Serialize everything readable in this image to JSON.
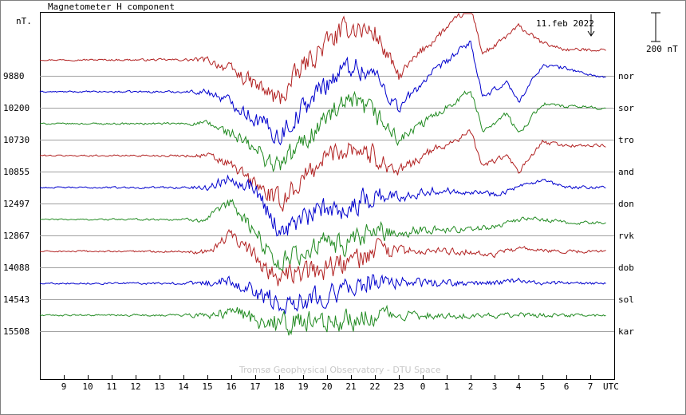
{
  "title": "Magnetometer H component",
  "unit_label": "nT.",
  "date_label": "11.feb 2022",
  "scale_label": "200 nT",
  "credit": "Tromsø Geophysical Observatory - DTU Space",
  "x_axis_unit": "UTC",
  "colors": {
    "red": "#b22222",
    "blue": "#0000cd",
    "green": "#228b22",
    "grid": "#a0a0a0",
    "frame": "#000000"
  },
  "chart_data": {
    "type": "line",
    "title": "Magnetometer H component",
    "xlabel": "UTC",
    "x_ticks": [
      "9",
      "10",
      "11",
      "12",
      "13",
      "14",
      "15",
      "16",
      "17",
      "18",
      "19",
      "20",
      "21",
      "22",
      "23",
      "0",
      "1",
      "2",
      "3",
      "4",
      "5",
      "6",
      "7"
    ],
    "x_range_hours_from_0800_utc": [
      0,
      24
    ],
    "scale_bar_nT": 200,
    "grid": true,
    "series": [
      {
        "name": "nor",
        "baseline_nT": "9880",
        "color": "red",
        "profile": [
          [
            0,
            0
          ],
          [
            7,
            0
          ],
          [
            8,
            -0.3
          ],
          [
            10,
            -1.2
          ],
          [
            11,
            -0.2
          ],
          [
            12,
            0.5
          ],
          [
            13,
            1
          ],
          [
            14,
            0.8
          ],
          [
            15,
            -0.5
          ],
          [
            16,
            0.3
          ],
          [
            18,
            1.6
          ],
          [
            18.5,
            0.2
          ],
          [
            19,
            0.4
          ],
          [
            20,
            1
          ],
          [
            21,
            0.5
          ],
          [
            22,
            0.3
          ],
          [
            23,
            0.3
          ],
          [
            24,
            0.3
          ]
        ],
        "noise": [
          [
            0,
            0.03
          ],
          [
            6,
            0.05
          ],
          [
            8,
            0.25
          ],
          [
            10,
            0.5
          ],
          [
            14,
            0.5
          ],
          [
            15,
            0.25
          ],
          [
            17,
            0.15
          ],
          [
            24,
            0.05
          ]
        ]
      },
      {
        "name": "sor",
        "baseline_nT": "10200",
        "color": "blue",
        "profile": [
          [
            0,
            0
          ],
          [
            7,
            0
          ],
          [
            8,
            -0.3
          ],
          [
            10,
            -1.3
          ],
          [
            12,
            0.3
          ],
          [
            13,
            0.8
          ],
          [
            14,
            0.5
          ],
          [
            15,
            -0.5
          ],
          [
            16,
            0.3
          ],
          [
            18,
            1.5
          ],
          [
            18.5,
            -0.2
          ],
          [
            19.5,
            0.3
          ],
          [
            20,
            -0.3
          ],
          [
            21,
            0.8
          ],
          [
            22,
            0.7
          ],
          [
            23,
            0.5
          ],
          [
            24,
            0.4
          ]
        ],
        "noise": [
          [
            0,
            0.03
          ],
          [
            6,
            0.05
          ],
          [
            8,
            0.25
          ],
          [
            10,
            0.5
          ],
          [
            14,
            0.5
          ],
          [
            15,
            0.25
          ],
          [
            17,
            0.15
          ],
          [
            24,
            0.05
          ]
        ]
      },
      {
        "name": "tro",
        "baseline_nT": "10730",
        "color": "green",
        "profile": [
          [
            0,
            0
          ],
          [
            7,
            0
          ],
          [
            8,
            -0.3
          ],
          [
            10,
            -1.3
          ],
          [
            12,
            0.2
          ],
          [
            13,
            0.6
          ],
          [
            14,
            0.3
          ],
          [
            15,
            -0.5
          ],
          [
            16,
            0
          ],
          [
            18,
            1
          ],
          [
            18.5,
            -0.2
          ],
          [
            19.5,
            0.3
          ],
          [
            20,
            -0.3
          ],
          [
            21,
            0.6
          ],
          [
            22,
            0.5
          ],
          [
            23,
            0.5
          ],
          [
            24,
            0.4
          ]
        ],
        "noise": [
          [
            0,
            0.03
          ],
          [
            6,
            0.05
          ],
          [
            8,
            0.25
          ],
          [
            10,
            0.5
          ],
          [
            14,
            0.5
          ],
          [
            15,
            0.25
          ],
          [
            17,
            0.15
          ],
          [
            24,
            0.05
          ]
        ]
      },
      {
        "name": "and",
        "baseline_nT": "10855",
        "color": "red",
        "profile": [
          [
            0,
            0
          ],
          [
            7,
            0
          ],
          [
            8,
            -0.3
          ],
          [
            10,
            -1.4
          ],
          [
            12,
            0
          ],
          [
            13,
            0.3
          ],
          [
            14,
            0
          ],
          [
            15,
            -0.5
          ],
          [
            16,
            0
          ],
          [
            18,
            0.7
          ],
          [
            18.5,
            -0.3
          ],
          [
            19.5,
            0
          ],
          [
            20,
            -0.5
          ],
          [
            21,
            0.4
          ],
          [
            22,
            0.3
          ],
          [
            23,
            0.3
          ],
          [
            24,
            0.3
          ]
        ],
        "noise": [
          [
            0,
            0.03
          ],
          [
            6,
            0.05
          ],
          [
            8,
            0.25
          ],
          [
            10,
            0.5
          ],
          [
            14,
            0.5
          ],
          [
            15,
            0.25
          ],
          [
            17,
            0.15
          ],
          [
            24,
            0.05
          ]
        ]
      },
      {
        "name": "don",
        "baseline_nT": "12497",
        "color": "blue",
        "profile": [
          [
            0,
            0
          ],
          [
            7,
            0
          ],
          [
            8,
            0.3
          ],
          [
            9,
            0
          ],
          [
            10,
            -1.3
          ],
          [
            12,
            -0.6
          ],
          [
            13,
            -0.6
          ],
          [
            14,
            -0.2
          ],
          [
            15,
            -0.3
          ],
          [
            16,
            -0.1
          ],
          [
            18,
            -0.1
          ],
          [
            19,
            -0.2
          ],
          [
            20,
            0
          ],
          [
            21,
            0.2
          ],
          [
            22,
            0
          ],
          [
            24,
            0
          ]
        ],
        "noise": [
          [
            0,
            0.03
          ],
          [
            6,
            0.05
          ],
          [
            8,
            0.25
          ],
          [
            10,
            0.5
          ],
          [
            14,
            0.5
          ],
          [
            15,
            0.25
          ],
          [
            17,
            0.15
          ],
          [
            24,
            0.05
          ]
        ]
      },
      {
        "name": "rvk",
        "baseline_nT": "12867",
        "color": "green",
        "profile": [
          [
            0,
            0
          ],
          [
            7,
            0
          ],
          [
            8,
            0.5
          ],
          [
            10,
            -1.3
          ],
          [
            12,
            -0.7
          ],
          [
            13,
            -0.8
          ],
          [
            14,
            -0.3
          ],
          [
            15,
            -0.4
          ],
          [
            16,
            -0.3
          ],
          [
            18,
            -0.3
          ],
          [
            19,
            -0.2
          ],
          [
            20,
            0
          ],
          [
            21,
            0
          ],
          [
            22,
            -0.1
          ],
          [
            24,
            -0.1
          ]
        ],
        "noise": [
          [
            0,
            0.03
          ],
          [
            6,
            0.05
          ],
          [
            8,
            0.25
          ],
          [
            10,
            0.5
          ],
          [
            14,
            0.5
          ],
          [
            15,
            0.25
          ],
          [
            17,
            0.15
          ],
          [
            24,
            0.05
          ]
        ]
      },
      {
        "name": "dob",
        "baseline_nT": "14088",
        "color": "red",
        "profile": [
          [
            0,
            0
          ],
          [
            7,
            0
          ],
          [
            8,
            0.5
          ],
          [
            10,
            -0.8
          ],
          [
            12,
            -0.5
          ],
          [
            13,
            -0.3
          ],
          [
            14,
            0
          ],
          [
            16,
            0
          ],
          [
            18,
            0
          ],
          [
            19,
            -0.1
          ],
          [
            20,
            0.1
          ],
          [
            21,
            0
          ],
          [
            24,
            0
          ]
        ],
        "noise": [
          [
            0,
            0.03
          ],
          [
            6,
            0.05
          ],
          [
            8,
            0.25
          ],
          [
            10,
            0.5
          ],
          [
            14,
            0.5
          ],
          [
            15,
            0.25
          ],
          [
            17,
            0.15
          ],
          [
            24,
            0.05
          ]
        ]
      },
      {
        "name": "sol",
        "baseline_nT": "14543",
        "color": "blue",
        "profile": [
          [
            0,
            0
          ],
          [
            7,
            0
          ],
          [
            8,
            0.1
          ],
          [
            10,
            -0.6
          ],
          [
            12,
            -0.3
          ],
          [
            13,
            -0.2
          ],
          [
            14,
            0.1
          ],
          [
            16,
            0
          ],
          [
            18,
            0
          ],
          [
            19,
            0
          ],
          [
            20,
            0.1
          ],
          [
            21,
            0
          ],
          [
            24,
            0
          ]
        ],
        "noise": [
          [
            0,
            0.03
          ],
          [
            6,
            0.05
          ],
          [
            8,
            0.25
          ],
          [
            10,
            0.5
          ],
          [
            14,
            0.5
          ],
          [
            15,
            0.25
          ],
          [
            17,
            0.15
          ],
          [
            24,
            0.05
          ]
        ]
      },
      {
        "name": "kar",
        "baseline_nT": "15508",
        "color": "green",
        "profile": [
          [
            0,
            0
          ],
          [
            7,
            0
          ],
          [
            8,
            0.1
          ],
          [
            10,
            -0.3
          ],
          [
            12,
            -0.2
          ],
          [
            13,
            -0.1
          ],
          [
            14,
            0
          ],
          [
            16,
            0
          ],
          [
            24,
            0
          ]
        ],
        "noise": [
          [
            0,
            0.03
          ],
          [
            6,
            0.05
          ],
          [
            8,
            0.25
          ],
          [
            10,
            0.5
          ],
          [
            14,
            0.5
          ],
          [
            15,
            0.25
          ],
          [
            17,
            0.15
          ],
          [
            24,
            0.05
          ]
        ]
      }
    ]
  }
}
